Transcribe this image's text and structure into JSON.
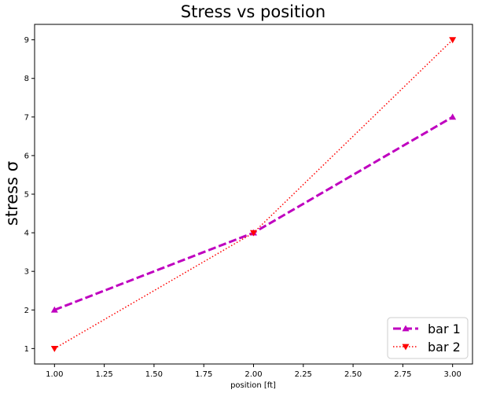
{
  "chart_data": {
    "type": "line",
    "title": "Stress vs position",
    "xlabel": "position [ft]",
    "ylabel": "stress σ",
    "xlim": [
      0.9,
      3.1
    ],
    "ylim": [
      0.6,
      9.4
    ],
    "xticks": [
      1.0,
      1.25,
      1.5,
      1.75,
      2.0,
      2.25,
      2.5,
      2.75,
      3.0
    ],
    "xtick_labels": [
      "1.00",
      "1.25",
      "1.50",
      "1.75",
      "2.00",
      "2.25",
      "2.50",
      "2.75",
      "3.00"
    ],
    "yticks": [
      1,
      2,
      3,
      4,
      5,
      6,
      7,
      8,
      9
    ],
    "ytick_labels": [
      "1",
      "2",
      "3",
      "4",
      "5",
      "6",
      "7",
      "8",
      "9"
    ],
    "grid": false,
    "legend_position": "lower-right",
    "series": [
      {
        "name": "bar 1",
        "x": [
          1,
          2,
          3
        ],
        "y": [
          2,
          4,
          7
        ],
        "color": "#bf00bf",
        "line_style": "dashed",
        "marker": "triangle-up"
      },
      {
        "name": "bar 2",
        "x": [
          1,
          2,
          3
        ],
        "y": [
          1,
          4,
          9
        ],
        "color": "#ff0000",
        "line_style": "dotted",
        "marker": "triangle-down"
      }
    ]
  }
}
